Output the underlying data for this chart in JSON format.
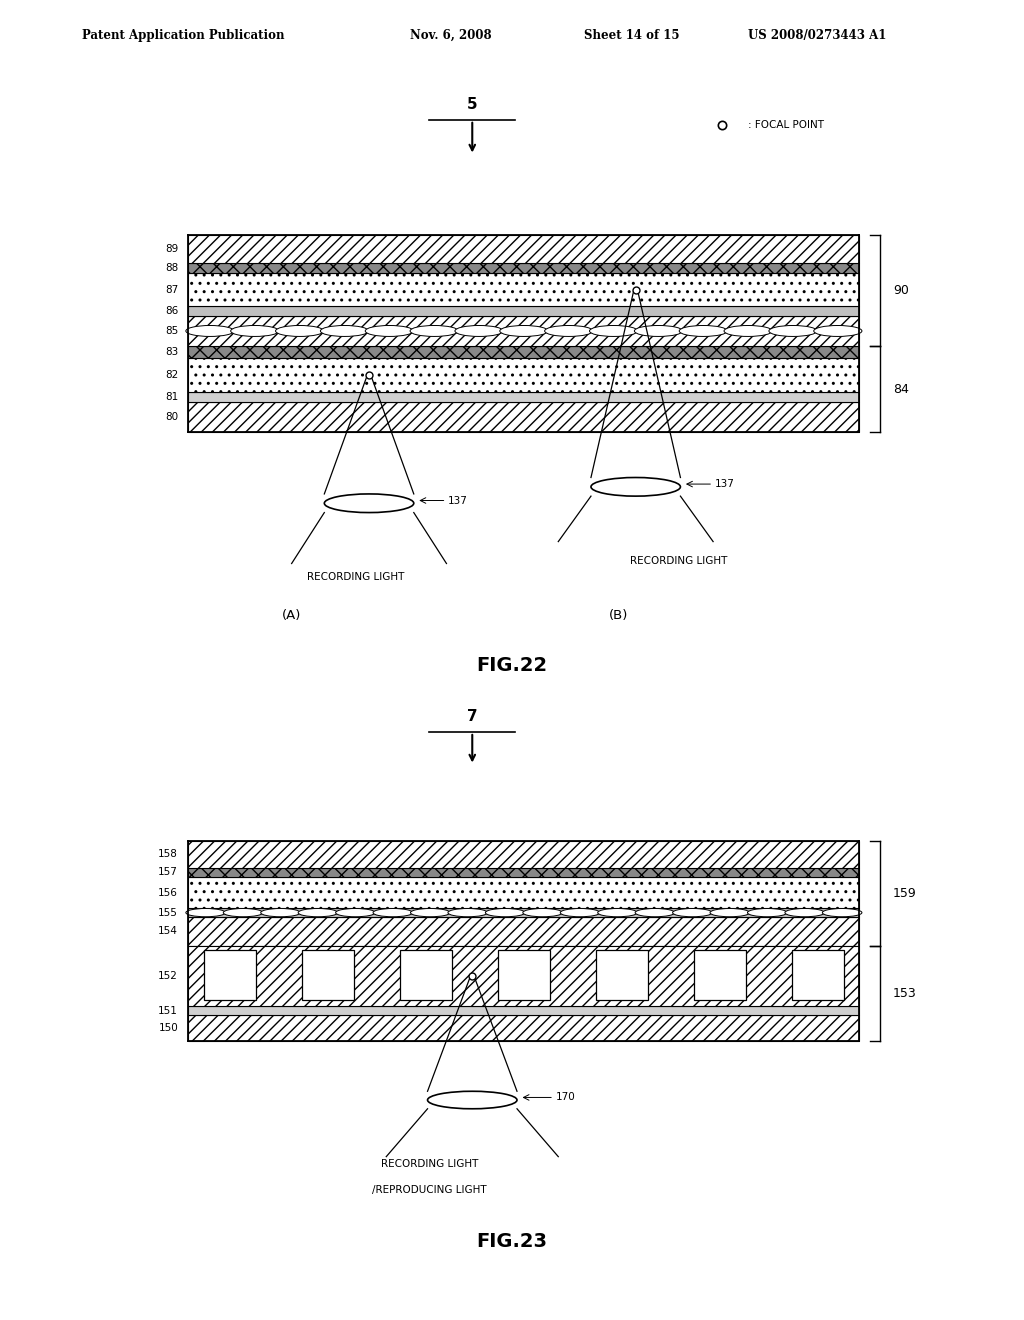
{
  "bg_color": "#ffffff",
  "header_text": "Patent Application Publication",
  "header_date": "Nov. 6, 2008",
  "header_sheet": "Sheet 14 of 15",
  "header_patent": "US 2008/0273443 A1",
  "fig22_title": "FIG.22",
  "fig23_title": "FIG.23",
  "focal_point_text": ": FOCAL POINT",
  "fig22_arrow_label": "5",
  "fig23_arrow_label": "7",
  "recording_light": "RECORDING LIGHT",
  "recording_repro_light1": "RECORDING LIGHT",
  "recording_repro_light2": "/REPRODUCING LIGHT",
  "label_137": "137",
  "label_170": "170",
  "label_A": "(A)",
  "label_B": "(B)"
}
